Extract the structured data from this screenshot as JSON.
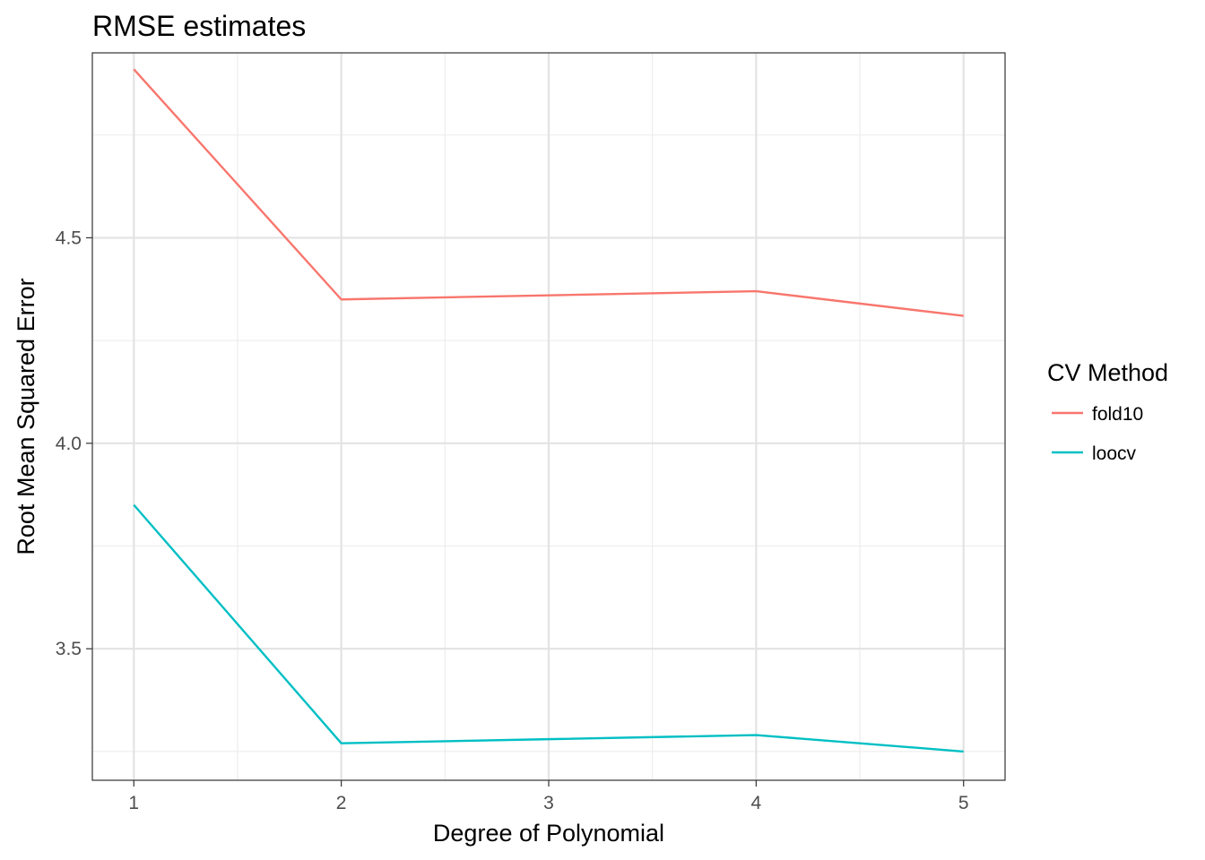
{
  "chart_data": {
    "type": "line",
    "title": "RMSE estimates",
    "xlabel": "Degree of Polynomial",
    "ylabel": "Root Mean Squared Error",
    "x": [
      1,
      2,
      3,
      4,
      5
    ],
    "xlim": [
      0.8,
      5.2
    ],
    "ylim": [
      3.18,
      4.95
    ],
    "x_ticks": [
      1,
      2,
      3,
      4,
      5
    ],
    "y_ticks": [
      3.5,
      4.0,
      4.5
    ],
    "y_tick_labels": [
      "3.5",
      "4.0",
      "4.5"
    ],
    "grid": true,
    "legend": {
      "title": "CV Method",
      "position": "right"
    },
    "series": [
      {
        "name": "fold10",
        "color": "#F8766D",
        "values": [
          4.91,
          4.35,
          4.36,
          4.37,
          4.31
        ]
      },
      {
        "name": "loocv",
        "color": "#00BFC4",
        "values": [
          3.85,
          3.27,
          3.28,
          3.29,
          3.25
        ]
      }
    ]
  }
}
